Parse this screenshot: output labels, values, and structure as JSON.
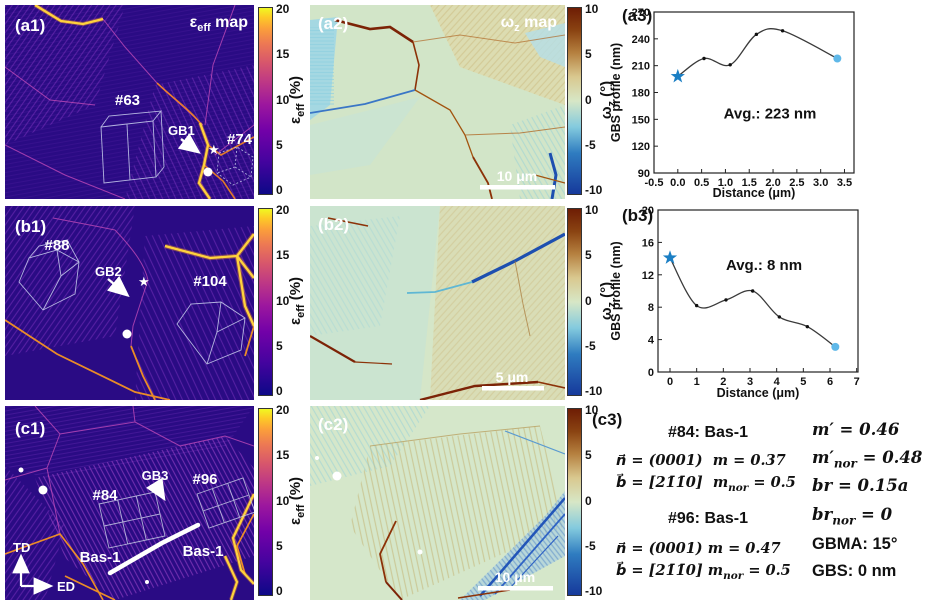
{
  "panels": {
    "a1": {
      "tag": "(a1)",
      "t_sym": "ε",
      "t_sub": "eff",
      "t_rest": " map",
      "grain1": "#63",
      "gb": "GB1",
      "grain2": "#74"
    },
    "a2": {
      "tag": "(a2)",
      "t_sym": "ω",
      "t_sub": "z",
      "t_rest": " map",
      "scalebar": "10 μm"
    },
    "b1": {
      "tag": "(b1)",
      "grain1": "#88",
      "gb": "GB2",
      "grain2": "#104"
    },
    "b2": {
      "tag": "(b2)",
      "scalebar": "5 μm"
    },
    "c1": {
      "tag": "(c1)",
      "grain1": "#84",
      "gb": "GB3",
      "grain2": "#96",
      "trace_left": "Bas-1",
      "trace_right": "Bas-1",
      "axis_vertical": "TD",
      "axis_horizontal": "ED"
    },
    "c2": {
      "tag": "(c2)",
      "scalebar": "10 μm"
    },
    "a3": {
      "tag": "(a3)"
    },
    "b3": {
      "tag": "(b3)"
    },
    "c3": {
      "tag": "(c3)"
    }
  },
  "colorbars": {
    "eps": {
      "symbol": "ε",
      "sub": "eff",
      "unit": " (%)",
      "ticks": [
        "20",
        "15",
        "10",
        "5",
        "0"
      ]
    },
    "omega": {
      "symbol": "ω",
      "sub": "z",
      "unit": " (°)",
      "ticks": [
        "10",
        "5",
        "0",
        "-5",
        "-10"
      ]
    }
  },
  "chart_data": [
    {
      "id": "a3",
      "type": "line",
      "x": [
        0,
        0.55,
        1.1,
        1.65,
        2.2,
        3.35
      ],
      "y": [
        198,
        218,
        211,
        245,
        249,
        218
      ],
      "xlabel": "Distance (μm)",
      "ylabel": "GBS profile (nm)",
      "xlim": [
        -0.5,
        3.7
      ],
      "ylim": [
        90,
        270
      ],
      "xticks": [
        -0.5,
        0,
        0.5,
        1,
        1.5,
        2,
        2.5,
        3,
        3.5
      ],
      "xtick_labels": [
        "-0.5",
        "0.0",
        "0.5",
        "1.0",
        "1.5",
        "2.0",
        "2.5",
        "3.0",
        "3.5"
      ],
      "yticks": [
        90,
        120,
        150,
        180,
        210,
        240,
        270
      ],
      "annotation": "Avg.: 223 nm",
      "annotation_pos": [
        0.58,
        0.66
      ],
      "line_color": "#3a3a3a",
      "marker_color": "#111111",
      "start_marker": "star",
      "start_color": "#1b7fc4",
      "end_marker": "circle",
      "end_color": "#5fb8e8",
      "grid": false,
      "legend": null
    },
    {
      "id": "b3",
      "type": "line",
      "x": [
        0,
        1.0,
        2.1,
        3.1,
        4.1,
        5.15,
        6.2
      ],
      "y": [
        14.1,
        8.2,
        8.9,
        10,
        6.8,
        5.6,
        3.1
      ],
      "xlabel": "Distance (μm)",
      "ylabel": "GBS profile (nm)",
      "xlim": [
        -0.45,
        7.05
      ],
      "ylim": [
        0,
        20
      ],
      "xticks": [
        0,
        1,
        2,
        3,
        4,
        5,
        6,
        7
      ],
      "xtick_labels": [
        "0",
        "1",
        "2",
        "3",
        "4",
        "5",
        "6",
        "7"
      ],
      "yticks": [
        0,
        4,
        8,
        12,
        16,
        20
      ],
      "annotation": "Avg.: 8 nm",
      "annotation_pos": [
        0.53,
        0.37
      ],
      "line_color": "#3a3a3a",
      "marker_color": "#111111",
      "start_marker": "star",
      "start_color": "#1b7fc4",
      "end_marker": "circle",
      "end_color": "#5fb8e8",
      "grid": false,
      "legend": null
    }
  ],
  "c3": {
    "g84_title": "#84: Bas-1",
    "g84_n": "n⃗ = (0001)",
    "g84_m": "m = 0.37",
    "g84_b": "b⃗ = [21̄1̄0]",
    "g84_mnor_base": "m",
    "g84_mnor_sub": "nor",
    "g84_mnor_val": " = 0.5",
    "g96_title": "#96: Bas-1",
    "g96_n": "n⃗ = (0001)",
    "g96_m": "m = 0.47",
    "g96_b": "b⃗ = [21̄1̄0]",
    "g96_mnor_base": "m",
    "g96_mnor_sub": "nor",
    "g96_mnor_val": " = 0.5",
    "right": {
      "mprime": "m′ = 0.46",
      "mprimenor_base": "m′",
      "mprimenor_sub": "nor",
      "mprimenor_val": " = 0.48",
      "br": "br = 0.15a",
      "brnor_base": "br",
      "brnor_sub": "nor",
      "brnor_val": " = 0",
      "gbma": "GBMA: 15°",
      "gbs": "GBS: 0 nm"
    }
  }
}
